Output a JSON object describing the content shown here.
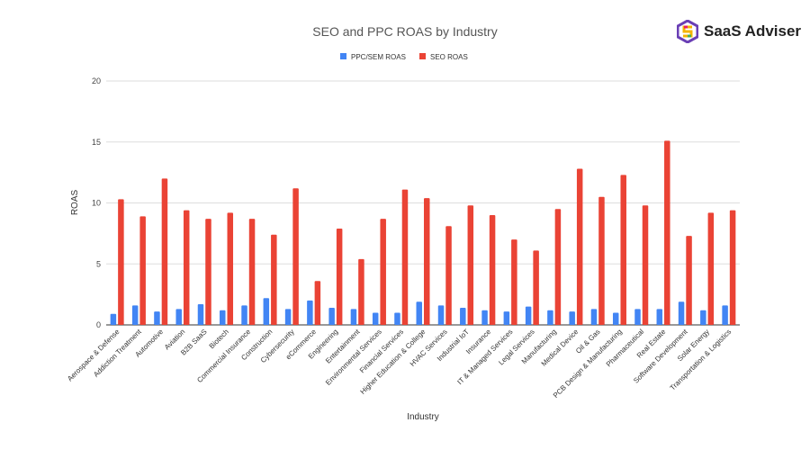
{
  "brand": {
    "name": "SaaS Adviser"
  },
  "chart_data": {
    "type": "bar",
    "title": "SEO and PPC ROAS by Industry",
    "xlabel": "Industry",
    "ylabel": "ROAS",
    "ylim": [
      0,
      20
    ],
    "yticks": [
      "0",
      "5",
      "10",
      "15",
      "20"
    ],
    "grid": true,
    "legend_position": "top",
    "categories": [
      "Aerospace & Defense",
      "Addiction Treatment",
      "Automotive",
      "Aviation",
      "B2B SaaS",
      "Biotech",
      "Commercial Insurance",
      "Construction",
      "Cybersecurity",
      "eCommerce",
      "Engineering",
      "Entertainment",
      "Environmental Services",
      "Financial Services",
      "Higher Education & College",
      "HVAC Services",
      "Industrial IoT",
      "Insurance",
      "IT & Managed Services",
      "Legal Services",
      "Manufacturing",
      "Medical Device",
      "Oil & Gas",
      "PCB Design & Manufacturing",
      "Pharmaceutical",
      "Real Estate",
      "Software Development",
      "Solar Energy",
      "Transportation & Logistics"
    ],
    "series": [
      {
        "name": "PPC/SEM ROAS",
        "color": "#4285f4",
        "values": [
          0.9,
          1.6,
          1.1,
          1.3,
          1.7,
          1.2,
          1.6,
          2.2,
          1.3,
          2.0,
          1.4,
          1.3,
          1.0,
          1.0,
          1.9,
          1.6,
          1.4,
          1.2,
          1.1,
          1.5,
          1.2,
          1.1,
          1.3,
          1.0,
          1.3,
          1.3,
          1.9,
          1.2,
          1.6
        ]
      },
      {
        "name": "SEO ROAS",
        "color": "#ea4335",
        "values": [
          10.3,
          8.9,
          12.0,
          9.4,
          8.7,
          9.2,
          8.7,
          7.4,
          11.2,
          3.6,
          7.9,
          5.4,
          8.7,
          11.1,
          10.4,
          8.1,
          9.8,
          9.0,
          7.0,
          6.1,
          9.5,
          12.8,
          10.5,
          12.3,
          9.8,
          15.1,
          7.3,
          9.2,
          9.4
        ]
      }
    ]
  }
}
